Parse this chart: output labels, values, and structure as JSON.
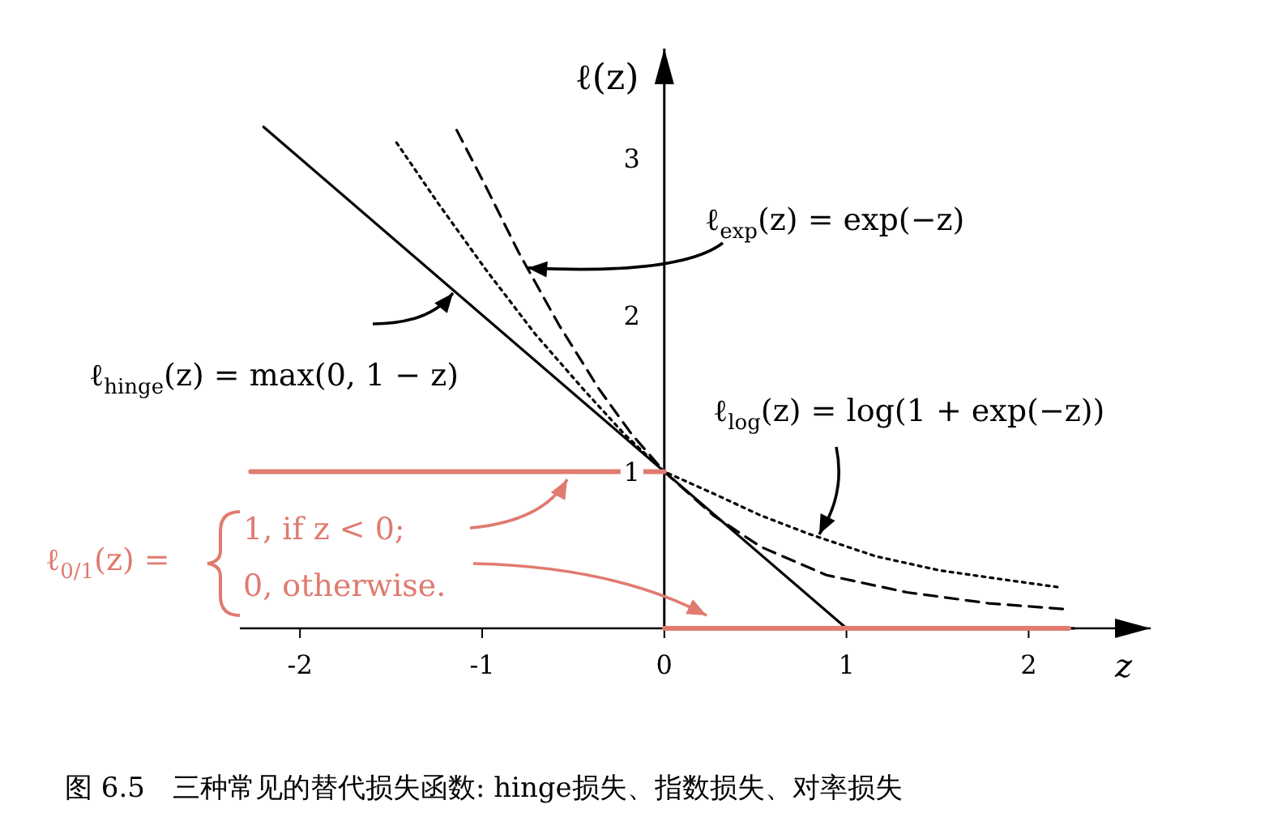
{
  "chart_data": {
    "type": "line",
    "title": "图 6.5　三种常见的替代损失函数: hinge损失、指数损失、对率损失",
    "xlabel": "z",
    "ylabel": "ℓ(z)",
    "xlim": [
      -2.33,
      2.67
    ],
    "ylim": [
      0,
      3.7
    ],
    "xticks": [
      -2,
      -1,
      0,
      1,
      2
    ],
    "yticks": [
      1,
      2,
      3
    ],
    "grid": false,
    "series": [
      {
        "color": "#000000",
        "line_style": "solid",
        "x": [
          -2.2,
          1,
          2.25
        ],
        "values": [
          3.2,
          0,
          0
        ]
      },
      {
        "color": "#000000",
        "line_style": "dashed",
        "x": [
          -1.14,
          -0.98,
          -0.8,
          -0.58,
          -0.36,
          -0.18,
          0,
          0.27,
          0.53,
          0.89,
          1.33,
          1.78,
          2.22
        ],
        "values": [
          3.18,
          2.82,
          2.4,
          1.94,
          1.53,
          1.24,
          1.0,
          0.72,
          0.52,
          0.34,
          0.23,
          0.16,
          0.12
        ]
      },
      {
        "color": "#000000",
        "line_style": "dotted",
        "x": [
          -1.47,
          -1.24,
          -0.98,
          -0.71,
          -0.44,
          -0.22,
          0,
          0.27,
          0.53,
          0.8,
          1.16,
          1.51,
          1.87,
          2.18
        ],
        "values": [
          3.1,
          2.71,
          2.29,
          1.88,
          1.52,
          1.24,
          1.0,
          0.86,
          0.72,
          0.6,
          0.46,
          0.37,
          0.31,
          0.26
        ]
      },
      {
        "color": "#e07b70",
        "line_style": "solid",
        "x": [
          -2.27,
          0
        ],
        "values": [
          1,
          1
        ]
      },
      {
        "color": "#e07b70",
        "line_style": "solid",
        "x": [
          0,
          2.22
        ],
        "values": [
          0,
          0
        ]
      }
    ],
    "annotations": [
      {
        "text": "ℓ$_{exp}$(z) = exp(−z)",
        "x": -0.75,
        "y": 2.3
      },
      {
        "text": "ℓ$_{hinge}$(z) = max(0, 1 − z)",
        "x": -1.16,
        "y": 2.14
      },
      {
        "text": "ℓ$_{log}$(z) = log(1 + exp(−z))",
        "x": 0.85,
        "y": 0.6
      },
      "ℓ$_{0/1}$(z) =",
      "1,    if z < 0;",
      "0,    otherwise."
    ]
  }
}
